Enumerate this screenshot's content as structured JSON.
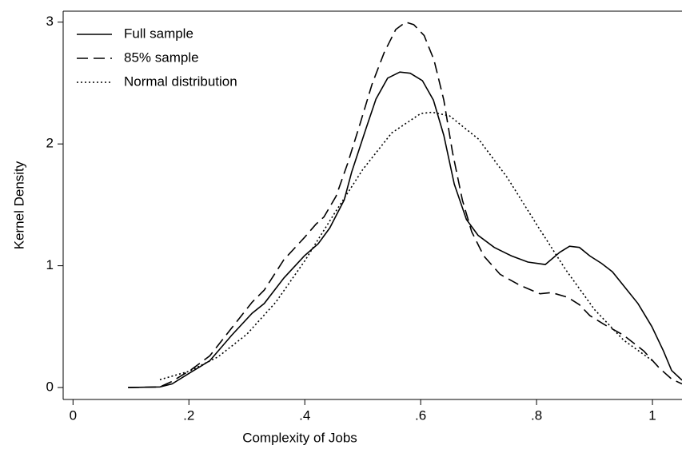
{
  "chart_data": {
    "type": "line",
    "xlabel": "Complexity of Jobs",
    "ylabel": "Kernel Density",
    "xlim": [
      -0.017,
      1.051
    ],
    "ylim": [
      -0.098,
      3.09
    ],
    "xticks": [
      0,
      {
        "value": 0.2,
        "label": ".2"
      },
      {
        "value": 0.4,
        "label": ".4"
      },
      {
        "value": 0.6,
        "label": ".6"
      },
      {
        "value": 0.8,
        "label": ".8"
      },
      1
    ],
    "yticks": [
      0,
      1,
      2,
      3
    ],
    "legend": "upper left",
    "series": [
      {
        "name": "Full sample",
        "color": "#000000",
        "linestyle": "solid",
        "x": [
          0.095,
          0.15,
          0.171,
          0.205,
          0.236,
          0.274,
          0.309,
          0.33,
          0.364,
          0.399,
          0.423,
          0.443,
          0.468,
          0.481,
          0.506,
          0.523,
          0.543,
          0.564,
          0.582,
          0.603,
          0.622,
          0.64,
          0.658,
          0.679,
          0.699,
          0.727,
          0.757,
          0.785,
          0.815,
          0.84,
          0.857,
          0.874,
          0.892,
          0.912,
          0.931,
          0.953,
          0.975,
          0.999,
          1.019,
          1.033,
          1.051
        ],
        "values": [
          0,
          0.005,
          0.03,
          0.13,
          0.22,
          0.43,
          0.61,
          0.69,
          0.9,
          1.08,
          1.18,
          1.31,
          1.54,
          1.77,
          2.13,
          2.37,
          2.54,
          2.59,
          2.58,
          2.52,
          2.36,
          2.07,
          1.67,
          1.38,
          1.25,
          1.15,
          1.08,
          1.03,
          1.01,
          1.11,
          1.16,
          1.15,
          1.08,
          1.02,
          0.95,
          0.82,
          0.69,
          0.5,
          0.3,
          0.14,
          0.06
        ]
      },
      {
        "name": "85% sample",
        "color": "#000000",
        "linestyle": "dashed",
        "x": [
          0.095,
          0.15,
          0.171,
          0.205,
          0.236,
          0.274,
          0.309,
          0.33,
          0.364,
          0.399,
          0.419,
          0.433,
          0.454,
          0.474,
          0.495,
          0.516,
          0.537,
          0.557,
          0.574,
          0.588,
          0.606,
          0.623,
          0.64,
          0.655,
          0.672,
          0.688,
          0.709,
          0.737,
          0.771,
          0.806,
          0.826,
          0.854,
          0.874,
          0.892,
          0.916,
          0.95,
          0.985,
          1.012,
          1.033,
          1.051
        ],
        "values": [
          0,
          0.005,
          0.05,
          0.15,
          0.26,
          0.49,
          0.7,
          0.8,
          1.05,
          1.23,
          1.34,
          1.4,
          1.57,
          1.84,
          2.16,
          2.49,
          2.75,
          2.94,
          3.0,
          2.98,
          2.89,
          2.69,
          2.36,
          1.93,
          1.54,
          1.28,
          1.08,
          0.93,
          0.84,
          0.77,
          0.78,
          0.74,
          0.68,
          0.59,
          0.52,
          0.43,
          0.3,
          0.16,
          0.07,
          0.03
        ]
      },
      {
        "name": "Normal distribution",
        "color": "#000000",
        "linestyle": "dotted",
        "x": [
          0.15,
          0.2,
          0.25,
          0.3,
          0.35,
          0.4,
          0.45,
          0.5,
          0.55,
          0.6,
          0.62,
          0.65,
          0.7,
          0.75,
          0.8,
          0.85,
          0.9,
          0.95,
          1.0
        ],
        "values": [
          0.065,
          0.133,
          0.251,
          0.437,
          0.701,
          1.04,
          1.42,
          1.79,
          2.09,
          2.25,
          2.26,
          2.23,
          2.04,
          1.72,
          1.34,
          0.97,
          0.64,
          0.39,
          0.22
        ]
      }
    ]
  }
}
